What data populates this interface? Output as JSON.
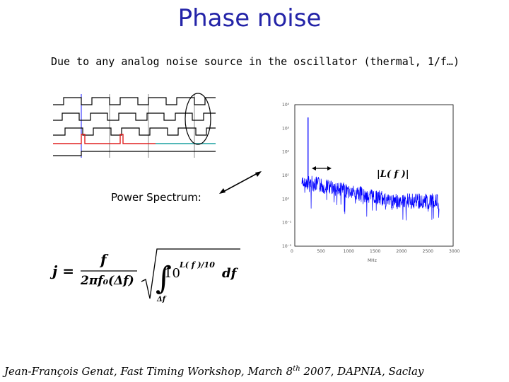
{
  "slide": {
    "title": "Phase noise",
    "subtitle": "Due to any analog noise source in the oscillator (thermal, 1/f…)",
    "power_spectrum_label": "Power Spectrum:",
    "spectrum_label": "|L( f )|",
    "footer": {
      "author": "Jean-François  Genat,",
      "event_prefix": "Fast Timing Workshop, March 8",
      "event_sup": "th",
      "event_suffix": " 2007, DAPNIA, Saclay"
    }
  },
  "formula": {
    "lhs": "j =",
    "numerator": "f",
    "denominator": "2πf₀(Δf)",
    "integrand": "10",
    "exponent": "L( f )/10",
    "differential": "df",
    "lower_limit": "Δf"
  },
  "chart_data": {
    "type": "line",
    "x_axis": {
      "ticks": [
        "0",
        "500",
        "1000",
        "1500",
        "2000",
        "2500",
        "3000"
      ],
      "xlim": [
        0,
        3000
      ],
      "unit_label": "MHz"
    },
    "y_axis": {
      "ticks": [
        "10⁴",
        "10³",
        "10²",
        "10¹",
        "10⁰",
        "10⁻¹",
        "10⁻²"
      ],
      "log_scale": true
    },
    "series": [
      {
        "color": "#0000ff",
        "peak_x": 250
      }
    ],
    "grid": false
  },
  "colors": {
    "title": "#2424a8",
    "trace": "#0000ff",
    "red_signal": "#e02020",
    "cyan_signal": "#1aa0a0",
    "arrow": "#000000"
  }
}
